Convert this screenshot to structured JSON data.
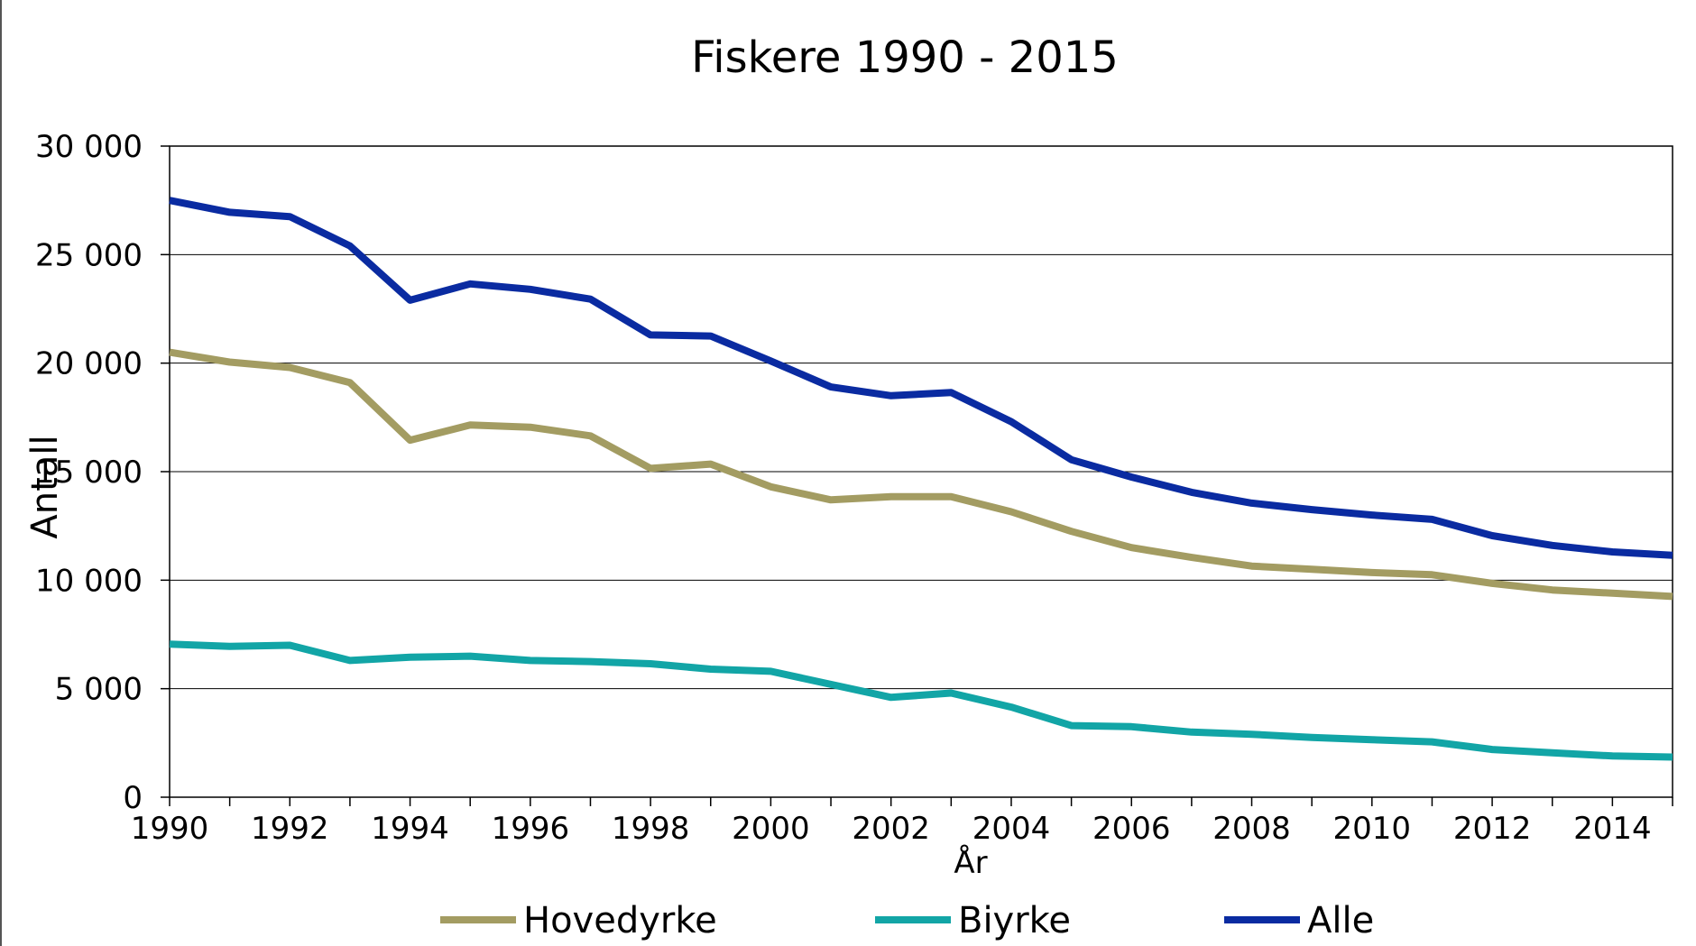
{
  "chart_data": {
    "type": "line",
    "title": "Fiskere 1990 - 2015",
    "xlabel": "År",
    "ylabel": "Antall",
    "x": [
      1990,
      1991,
      1992,
      1993,
      1994,
      1995,
      1996,
      1997,
      1998,
      1999,
      2000,
      2001,
      2002,
      2003,
      2004,
      2005,
      2006,
      2007,
      2008,
      2009,
      2010,
      2011,
      2012,
      2013,
      2014,
      2015
    ],
    "xlim": [
      1990,
      2015
    ],
    "ylim": [
      0,
      30000
    ],
    "x_ticks": [
      1990,
      1992,
      1994,
      1996,
      1998,
      2000,
      2002,
      2004,
      2006,
      2008,
      2010,
      2012,
      2014
    ],
    "x_tick_labels": [
      "1990",
      "1992",
      "1994",
      "1996",
      "1998",
      "2000",
      "2002",
      "2004",
      "2006",
      "2008",
      "2010",
      "2012",
      "2014"
    ],
    "y_ticks": [
      0,
      5000,
      10000,
      15000,
      20000,
      25000,
      30000
    ],
    "y_tick_labels": [
      "0",
      "5 000",
      "10 000",
      "15 000",
      "20 000",
      "25 000",
      "30 000"
    ],
    "grid": true,
    "legend_position": "bottom",
    "series": [
      {
        "name": "Hovedyrke",
        "color": "#a39c62",
        "values": [
          20500,
          20050,
          19800,
          19100,
          16450,
          17150,
          17050,
          16650,
          15150,
          15350,
          14300,
          13700,
          13850,
          13850,
          13150,
          12250,
          11500,
          11050,
          10650,
          10500,
          10350,
          10250,
          9850,
          9550,
          9400,
          9250
        ]
      },
      {
        "name": "Biyrke",
        "color": "#12a5a6",
        "values": [
          7050,
          6950,
          7000,
          6300,
          6450,
          6500,
          6300,
          6250,
          6150,
          5900,
          5800,
          5200,
          4600,
          4800,
          4150,
          3300,
          3250,
          3000,
          2900,
          2750,
          2650,
          2550,
          2200,
          2050,
          1900,
          1850
        ]
      },
      {
        "name": "Alle",
        "color": "#0a2ba1",
        "values": [
          27500,
          26950,
          26750,
          25400,
          22900,
          23650,
          23400,
          22950,
          21300,
          21250,
          20100,
          18900,
          18500,
          18650,
          17300,
          15550,
          14750,
          14050,
          13550,
          13250,
          13000,
          12800,
          12050,
          11600,
          11300,
          11150
        ]
      }
    ]
  }
}
